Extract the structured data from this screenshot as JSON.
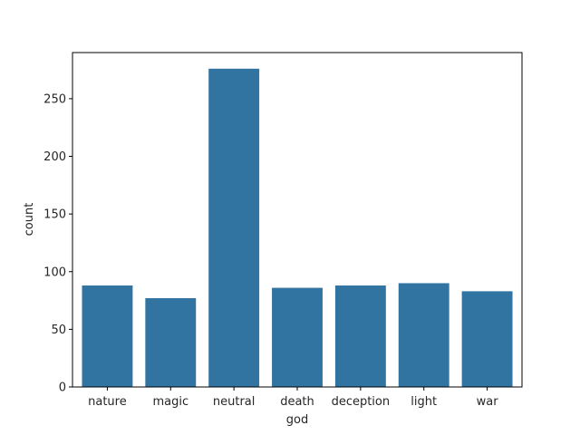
{
  "chart_data": {
    "type": "bar",
    "categories": [
      "nature",
      "magic",
      "neutral",
      "death",
      "deception",
      "light",
      "war"
    ],
    "values": [
      88,
      77,
      276,
      86,
      88,
      90,
      83
    ],
    "xlabel": "god",
    "ylabel": "count",
    "ylim": [
      0,
      290
    ],
    "yticks": [
      0,
      50,
      100,
      150,
      200,
      250
    ],
    "grid": false,
    "bar_color": "#3274a1"
  }
}
